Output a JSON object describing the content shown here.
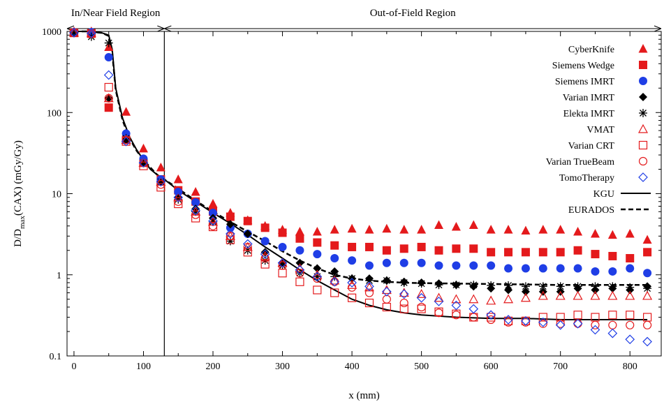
{
  "chart_data": {
    "type": "scatter",
    "title": "",
    "xlabel": "x (mm)",
    "ylabel": {
      "pre": "D/D",
      "sub": "max",
      "post": "(CAX) (mGy/Gy)"
    },
    "xlim": [
      -10,
      845
    ],
    "ylim": [
      0.1,
      1000
    ],
    "yscale": "log",
    "grid": false,
    "legend_position": "top-right",
    "x_ticks": [
      0,
      100,
      200,
      300,
      400,
      500,
      600,
      700,
      800
    ],
    "y_ticks": [
      {
        "value": 1000,
        "label": "1000"
      },
      {
        "value": 100,
        "label": "100"
      },
      {
        "value": 10,
        "label": "10"
      },
      {
        "value": 1,
        "label": "1"
      },
      {
        "value": 0.1,
        "label": "0.1"
      }
    ],
    "regions": [
      {
        "label": "In/Near Field Region",
        "from": -10,
        "to": 130
      },
      {
        "label": "Out-of-Field Region",
        "from": 130,
        "to": 845
      }
    ],
    "region_divider_x": 130,
    "series": [
      {
        "name": "CyberKnife",
        "marker": "triangle-filled",
        "color": "#e41a1c",
        "x": [
          0,
          25,
          50,
          75,
          100,
          125,
          150,
          175,
          200,
          225,
          250,
          275,
          300,
          325,
          350,
          375,
          400,
          425,
          450,
          475,
          500,
          525,
          550,
          575,
          600,
          625,
          650,
          675,
          700,
          725,
          750,
          775,
          800,
          825
        ],
        "y": [
          1000,
          1000,
          640,
          102,
          36,
          21,
          15,
          10.5,
          7.5,
          5.8,
          4.7,
          4.0,
          3.6,
          3.4,
          3.4,
          3.6,
          3.7,
          3.6,
          3.7,
          3.6,
          3.6,
          4.1,
          3.9,
          4.1,
          3.6,
          3.6,
          3.5,
          3.6,
          3.6,
          3.4,
          3.2,
          3.1,
          3.2,
          2.7
        ]
      },
      {
        "name": "Siemens Wedge",
        "marker": "square-filled",
        "color": "#e41a1c",
        "x": [
          0,
          25,
          50,
          75,
          100,
          125,
          150,
          175,
          200,
          225,
          250,
          275,
          300,
          325,
          350,
          375,
          400,
          425,
          450,
          475,
          500,
          525,
          550,
          575,
          600,
          625,
          650,
          675,
          700,
          725,
          750,
          775,
          800,
          825
        ],
        "y": [
          960,
          950,
          115,
          46,
          24,
          15,
          11,
          8,
          6,
          5.2,
          4.6,
          3.8,
          3.3,
          2.8,
          2.5,
          2.3,
          2.2,
          2.2,
          2.0,
          2.1,
          2.2,
          2.0,
          2.1,
          2.1,
          1.9,
          1.9,
          1.9,
          1.9,
          1.9,
          2.0,
          1.8,
          1.7,
          1.6,
          1.9
        ]
      },
      {
        "name": "Siemens IMRT",
        "marker": "circle-filled",
        "color": "#1f3ee6",
        "x": [
          0,
          25,
          50,
          75,
          100,
          125,
          150,
          175,
          200,
          225,
          250,
          275,
          300,
          325,
          350,
          375,
          400,
          425,
          450,
          475,
          500,
          525,
          550,
          575,
          600,
          625,
          650,
          675,
          700,
          725,
          750,
          775,
          800,
          825
        ],
        "y": [
          980,
          980,
          480,
          55,
          27,
          15,
          10.5,
          7.8,
          5.8,
          3.8,
          3.2,
          2.6,
          2.2,
          2.0,
          1.8,
          1.6,
          1.5,
          1.3,
          1.4,
          1.4,
          1.4,
          1.3,
          1.3,
          1.3,
          1.3,
          1.2,
          1.2,
          1.2,
          1.2,
          1.2,
          1.1,
          1.1,
          1.2,
          1.05
        ]
      },
      {
        "name": "Varian IMRT",
        "marker": "diamond-filled",
        "color": "#000000",
        "x": [
          50,
          75,
          100,
          125,
          150,
          175,
          200,
          225,
          250,
          275,
          300,
          325,
          350,
          375,
          400,
          425,
          450,
          475,
          500,
          525,
          550,
          575,
          600,
          625,
          650,
          675,
          700,
          725,
          750,
          775,
          800,
          825
        ],
        "y": [
          150,
          46,
          24,
          14,
          9,
          6.5,
          5,
          4.2,
          3.2,
          1.9,
          1.4,
          1.4,
          1.2,
          1.1,
          0.9,
          0.9,
          0.85,
          0.82,
          0.8,
          0.78,
          0.75,
          0.72,
          0.68,
          0.65,
          0.62,
          0.62,
          0.62,
          0.68,
          0.65,
          0.68,
          0.65,
          0.72
        ]
      },
      {
        "name": "Elekta IMRT",
        "marker": "asterisk",
        "color": "#000000",
        "x": [
          0,
          25,
          50,
          75,
          100,
          125,
          150,
          175,
          200,
          225,
          250,
          275,
          300,
          325,
          350,
          375,
          400,
          425,
          450,
          475,
          500,
          525,
          550,
          575,
          600,
          625,
          650,
          675,
          700,
          725,
          750,
          775,
          800,
          825
        ],
        "y": [
          960,
          860,
          720,
          48,
          24,
          14,
          8.5,
          6,
          4.5,
          2.6,
          2.0,
          1.5,
          1.3,
          1.05,
          0.95,
          0.95,
          0.9,
          0.85,
          0.85,
          0.8,
          0.78,
          0.75,
          0.75,
          0.75,
          0.74,
          0.74,
          0.72,
          0.72,
          0.72,
          0.72,
          0.72,
          0.72,
          0.7,
          0.68
        ]
      },
      {
        "name": "VMAT",
        "marker": "triangle-open",
        "color": "#e41a1c",
        "x": [
          0,
          25,
          50,
          75,
          100,
          125,
          150,
          175,
          200,
          225,
          250,
          275,
          300,
          325,
          350,
          375,
          400,
          425,
          450,
          475,
          500,
          525,
          550,
          575,
          600,
          625,
          650,
          675,
          700,
          725,
          750,
          775,
          800,
          825
        ],
        "y": [
          960,
          950,
          150,
          46,
          24,
          14,
          9,
          6,
          4.5,
          3,
          2.2,
          1.7,
          1.4,
          1.2,
          1.0,
          0.85,
          0.75,
          0.7,
          0.65,
          0.6,
          0.58,
          0.52,
          0.5,
          0.5,
          0.48,
          0.5,
          0.52,
          0.55,
          0.55,
          0.55,
          0.55,
          0.55,
          0.55,
          0.55
        ]
      },
      {
        "name": "Varian CRT",
        "marker": "square-open",
        "color": "#e41a1c",
        "x": [
          0,
          25,
          50,
          75,
          100,
          125,
          150,
          175,
          200,
          225,
          250,
          275,
          300,
          325,
          350,
          375,
          400,
          425,
          450,
          475,
          500,
          525,
          550,
          575,
          600,
          625,
          650,
          675,
          700,
          725,
          750,
          775,
          800,
          825
        ],
        "y": [
          960,
          940,
          205,
          44,
          22,
          12,
          7.5,
          5,
          3.9,
          2.7,
          1.9,
          1.35,
          1.05,
          0.82,
          0.65,
          0.6,
          0.52,
          0.45,
          0.4,
          0.38,
          0.38,
          0.35,
          0.33,
          0.3,
          0.3,
          0.27,
          0.27,
          0.3,
          0.3,
          0.32,
          0.3,
          0.32,
          0.32,
          0.3
        ]
      },
      {
        "name": "Varian TrueBeam",
        "marker": "circle-open",
        "color": "#e41a1c",
        "x": [
          0,
          25,
          50,
          75,
          100,
          125,
          150,
          175,
          200,
          225,
          250,
          275,
          300,
          325,
          350,
          375,
          400,
          425,
          450,
          475,
          500,
          525,
          550,
          575,
          600,
          625,
          650,
          675,
          700,
          725,
          750,
          775,
          800,
          825
        ],
        "y": [
          960,
          950,
          150,
          46,
          24,
          13,
          8,
          5.5,
          4,
          3,
          2.2,
          1.6,
          1.3,
          1.05,
          0.9,
          0.82,
          0.7,
          0.6,
          0.5,
          0.45,
          0.4,
          0.34,
          0.32,
          0.3,
          0.28,
          0.26,
          0.26,
          0.25,
          0.25,
          0.25,
          0.24,
          0.24,
          0.24,
          0.24
        ]
      },
      {
        "name": "TomoTherapy",
        "marker": "diamond-open",
        "color": "#1f3ee6",
        "x": [
          0,
          25,
          50,
          75,
          100,
          125,
          150,
          175,
          200,
          225,
          250,
          275,
          300,
          325,
          350,
          375,
          400,
          425,
          450,
          475,
          500,
          525,
          550,
          575,
          600,
          625,
          650,
          675,
          700,
          725,
          750,
          775,
          800,
          825
        ],
        "y": [
          960,
          950,
          290,
          44,
          24,
          14,
          9,
          6.2,
          4.6,
          3.2,
          2.4,
          1.8,
          1.4,
          1.15,
          0.95,
          0.82,
          0.8,
          0.72,
          0.62,
          0.58,
          0.52,
          0.47,
          0.42,
          0.38,
          0.32,
          0.28,
          0.27,
          0.26,
          0.24,
          0.25,
          0.21,
          0.19,
          0.16,
          0.15
        ]
      },
      {
        "name": "KGU",
        "style": "line-solid",
        "color": "#000000",
        "x": [
          0,
          20,
          40,
          50,
          55,
          60,
          70,
          80,
          90,
          100,
          110,
          120,
          130,
          150,
          175,
          200,
          225,
          250,
          275,
          300,
          325,
          350,
          375,
          400,
          425,
          450,
          475,
          500,
          550,
          600,
          650,
          700,
          750,
          800,
          825
        ],
        "y": [
          1000,
          1000,
          960,
          900,
          600,
          200,
          85,
          50,
          35,
          26,
          20,
          17,
          15,
          11,
          8,
          5.8,
          4.3,
          3.1,
          2.2,
          1.6,
          1.15,
          0.85,
          0.65,
          0.5,
          0.42,
          0.37,
          0.34,
          0.32,
          0.3,
          0.29,
          0.29,
          0.28,
          0.28,
          0.28,
          0.28
        ]
      },
      {
        "name": "EURADOS",
        "style": "line-dashed",
        "color": "#000000",
        "x": [
          0,
          20,
          40,
          50,
          55,
          60,
          70,
          80,
          90,
          100,
          110,
          120,
          130,
          150,
          175,
          200,
          225,
          250,
          275,
          300,
          325,
          350,
          375,
          400,
          425,
          450,
          475,
          500,
          550,
          600,
          650,
          700,
          750,
          800,
          825
        ],
        "y": [
          1000,
          1000,
          960,
          880,
          550,
          190,
          80,
          48,
          34,
          26,
          21,
          17,
          15,
          11.5,
          8.2,
          6,
          4.5,
          3.4,
          2.6,
          1.95,
          1.5,
          1.2,
          1.0,
          0.9,
          0.85,
          0.82,
          0.8,
          0.79,
          0.78,
          0.77,
          0.76,
          0.75,
          0.75,
          0.75,
          0.75
        ]
      }
    ]
  }
}
